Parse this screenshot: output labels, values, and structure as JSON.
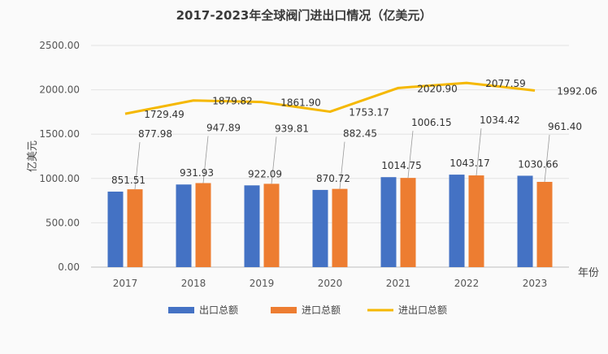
{
  "chart_data": {
    "type": "bar",
    "title": "2017-2023年全球阀门进出口情况（亿美元）",
    "ylabel": "亿美元",
    "xlabel": "年份",
    "ylim": [
      0,
      2500
    ],
    "yticks": [
      "0.00",
      "500.00",
      "1000.00",
      "1500.00",
      "2000.00",
      "2500.00"
    ],
    "categories": [
      "2017",
      "2018",
      "2019",
      "2020",
      "2021",
      "2022",
      "2023"
    ],
    "series": [
      {
        "name": "出口总额",
        "type": "bar",
        "color": "#4472C4",
        "values": [
          851.51,
          931.93,
          922.09,
          870.72,
          1014.75,
          1043.17,
          1030.66
        ],
        "labels": [
          "851.51",
          "931.93",
          "922.09",
          "870.72",
          "1014.75",
          "1043.17",
          "1030.66"
        ]
      },
      {
        "name": "进口总额",
        "type": "bar",
        "color": "#ED7D31",
        "values": [
          877.98,
          947.89,
          939.81,
          882.45,
          1006.15,
          1034.42,
          961.4
        ],
        "labels": [
          "877.98",
          "947.89",
          "939.81",
          "882.45",
          "1006.15",
          "1034.42",
          "961.40"
        ]
      },
      {
        "name": "进出口总额",
        "type": "line",
        "color": "#F5B800",
        "values": [
          1729.49,
          1879.82,
          1861.9,
          1753.17,
          2020.9,
          2077.59,
          1992.06
        ],
        "labels": [
          "1729.49",
          "1879.82",
          "1861.90",
          "1753.17",
          "2020.90",
          "2077.59",
          "1992.06"
        ]
      }
    ],
    "legend_position": "bottom",
    "grid": true
  }
}
